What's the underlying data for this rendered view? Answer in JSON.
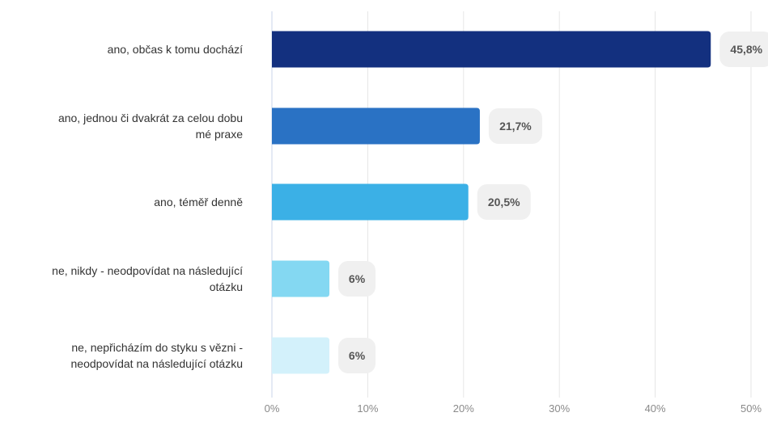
{
  "chart_data": {
    "type": "bar",
    "orientation": "horizontal",
    "categories": [
      [
        "ano, občas k tomu dochází"
      ],
      [
        "ano, jednou či dvakrát za celou dobu",
        "mé praxe"
      ],
      [
        "ano, téměř denně"
      ],
      [
        "ne, nikdy - neodpovídat na následující",
        "otázku"
      ],
      [
        "ne, nepřicházím do styku s vězni -",
        "neodpovídat na následující otázku"
      ]
    ],
    "values": [
      45.8,
      21.7,
      20.5,
      6,
      6
    ],
    "value_labels": [
      "45,8%",
      "21,7%",
      "20,5%",
      "6%",
      "6%"
    ],
    "bar_colors": [
      "#13307f",
      "#2a72c4",
      "#3bb0e6",
      "#84d8f2",
      "#d3f1fb"
    ],
    "xlim": [
      0,
      50
    ],
    "xticks": [
      0,
      10,
      20,
      30,
      40,
      50
    ],
    "xtick_labels": [
      "0%",
      "10%",
      "20%",
      "30%",
      "40%",
      "50%"
    ],
    "grid": true,
    "title": "",
    "xlabel": "",
    "ylabel": ""
  }
}
